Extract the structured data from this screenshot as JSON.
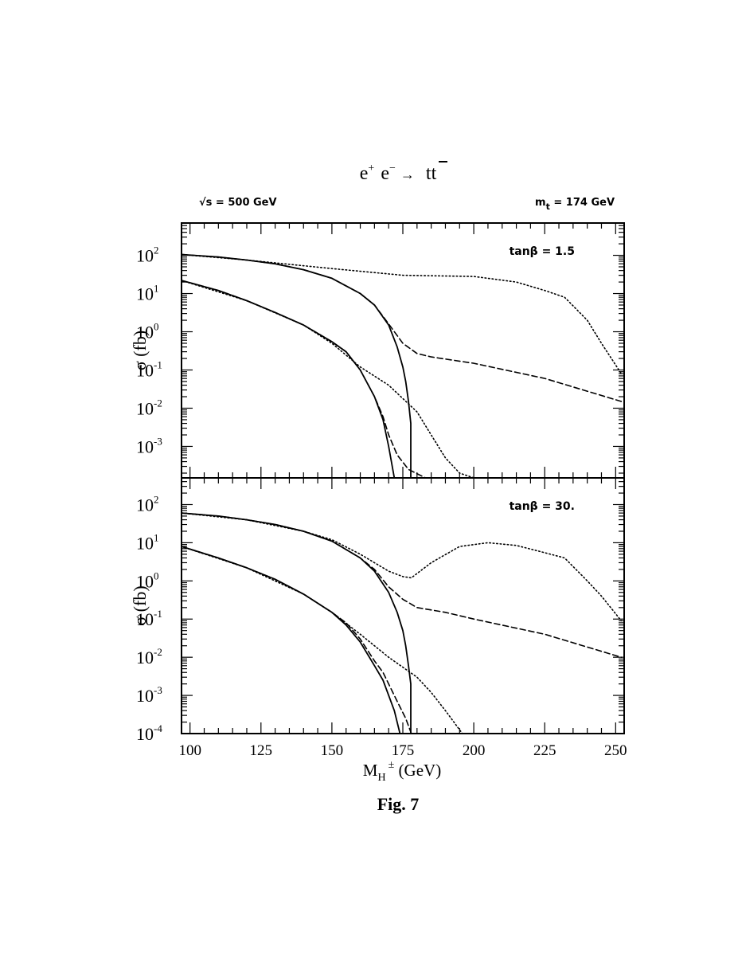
{
  "header": {
    "reaction_parts": [
      "e",
      "+",
      "e",
      "−",
      "→",
      "t",
      "t"
    ],
    "sqrt_s_label": "√s =  500 GeV",
    "mt_label_main": "m",
    "mt_label_sub": "t",
    "mt_label_value": " = 174 GeV"
  },
  "caption": "Fig. 7",
  "xaxis": {
    "label_main": "M",
    "label_sub": "H",
    "label_sup": "±",
    "label_unit": " (GeV)",
    "ticks": [
      "100",
      "125",
      "150",
      "175",
      "200",
      "225",
      "250"
    ]
  },
  "chart_data": [
    {
      "type": "line",
      "yscale": "log",
      "xlim": [
        97,
        253
      ],
      "ylim": [
        0.00015,
        700
      ],
      "ylabel": "σ (fb)",
      "annotation": "tanβ = 1.5",
      "yticks": [
        {
          "base": "10",
          "exp": "2",
          "value": 100
        },
        {
          "base": "10",
          "exp": "1",
          "value": 10
        },
        {
          "base": "10",
          "exp": "0",
          "value": 1
        },
        {
          "base": "10",
          "exp": "-1",
          "value": 0.1
        },
        {
          "base": "10",
          "exp": "-2",
          "value": 0.01
        },
        {
          "base": "10",
          "exp": "-3",
          "value": 0.001
        }
      ],
      "series": [
        {
          "style": "solid",
          "x": [
            97,
            110,
            120,
            130,
            140,
            150,
            160,
            165,
            170,
            173,
            175,
            176,
            177,
            177.8,
            177.8
          ],
          "y": [
            105,
            90,
            75,
            60,
            42,
            25,
            10,
            5,
            1.5,
            0.4,
            0.12,
            0.05,
            0.015,
            0.004,
            0.00015
          ]
        },
        {
          "style": "dashed",
          "x": [
            97,
            110,
            120,
            130,
            140,
            150,
            160,
            165,
            170,
            175,
            180,
            185,
            200,
            225,
            252
          ],
          "y": [
            105,
            90,
            75,
            60,
            42,
            25,
            10,
            5,
            1.6,
            0.5,
            0.27,
            0.22,
            0.15,
            0.06,
            0.015
          ]
        },
        {
          "style": "dotted",
          "x": [
            97,
            120,
            150,
            175,
            200,
            215,
            225,
            232,
            240,
            245,
            252
          ],
          "y": [
            105,
            75,
            45,
            30,
            28,
            20,
            12,
            8,
            2,
            0.5,
            0.08
          ]
        },
        {
          "style": "solid",
          "x": [
            97,
            110,
            120,
            130,
            140,
            150,
            155,
            160,
            165,
            168,
            170,
            172
          ],
          "y": [
            22,
            12,
            6.5,
            3.2,
            1.5,
            0.55,
            0.3,
            0.1,
            0.02,
            0.005,
            0.001,
            0.00015
          ]
        },
        {
          "style": "dashed",
          "x": [
            97,
            110,
            120,
            130,
            140,
            150,
            155,
            160,
            165,
            168,
            170,
            173,
            177,
            183
          ],
          "y": [
            22,
            12,
            6.5,
            3.2,
            1.5,
            0.55,
            0.3,
            0.1,
            0.02,
            0.006,
            0.002,
            0.0006,
            0.00025,
            0.00015
          ]
        },
        {
          "style": "dotted",
          "x": [
            97,
            120,
            140,
            150,
            160,
            170,
            180,
            185,
            190,
            195,
            200
          ],
          "y": [
            22,
            6.5,
            1.5,
            0.5,
            0.12,
            0.04,
            0.008,
            0.002,
            0.0005,
            0.0002,
            0.00015
          ]
        }
      ]
    },
    {
      "type": "line",
      "yscale": "log",
      "xlim": [
        97,
        253
      ],
      "ylim": [
        0.0001,
        500
      ],
      "ylabel": "σ (fb)",
      "annotation": "tanβ = 30.",
      "yticks": [
        {
          "base": "10",
          "exp": "2",
          "value": 100
        },
        {
          "base": "10",
          "exp": "1",
          "value": 10
        },
        {
          "base": "10",
          "exp": "0",
          "value": 1
        },
        {
          "base": "10",
          "exp": "-1",
          "value": 0.1
        },
        {
          "base": "10",
          "exp": "-2",
          "value": 0.01
        },
        {
          "base": "10",
          "exp": "-3",
          "value": 0.001
        },
        {
          "base": "10",
          "exp": "-4",
          "value": 0.0001
        }
      ],
      "series": [
        {
          "style": "solid",
          "x": [
            97,
            110,
            120,
            130,
            140,
            150,
            160,
            165,
            170,
            173,
            175,
            176,
            177,
            177.8,
            177.8
          ],
          "y": [
            60,
            50,
            40,
            30,
            20,
            11,
            4,
            1.8,
            0.5,
            0.15,
            0.05,
            0.02,
            0.006,
            0.002,
            0.0001
          ]
        },
        {
          "style": "dashed",
          "x": [
            97,
            110,
            120,
            130,
            140,
            150,
            160,
            165,
            170,
            175,
            180,
            190,
            200,
            225,
            252
          ],
          "y": [
            60,
            50,
            40,
            30,
            20,
            11,
            4,
            2,
            0.7,
            0.33,
            0.2,
            0.15,
            0.1,
            0.04,
            0.01
          ]
        },
        {
          "style": "dotted",
          "x": [
            97,
            120,
            140,
            150,
            160,
            170,
            175,
            178,
            185,
            195,
            205,
            215,
            225,
            232,
            240,
            245,
            252
          ],
          "y": [
            60,
            40,
            20,
            12,
            5,
            1.8,
            1.3,
            1.2,
            3,
            8,
            10,
            8.5,
            5.5,
            4,
            1,
            0.4,
            0.09
          ]
        },
        {
          "style": "solid",
          "x": [
            97,
            110,
            120,
            130,
            140,
            150,
            155,
            160,
            165,
            168,
            170,
            172,
            174
          ],
          "y": [
            8,
            4,
            2.2,
            1.1,
            0.45,
            0.15,
            0.07,
            0.025,
            0.006,
            0.0025,
            0.001,
            0.0004,
            0.0001
          ]
        },
        {
          "style": "dashed",
          "x": [
            97,
            110,
            120,
            130,
            140,
            150,
            155,
            160,
            165,
            168,
            170,
            173,
            176,
            178
          ],
          "y": [
            8,
            4,
            2.2,
            1.1,
            0.45,
            0.15,
            0.08,
            0.03,
            0.008,
            0.004,
            0.002,
            0.0007,
            0.00025,
            0.0001
          ]
        },
        {
          "style": "dotted",
          "x": [
            97,
            120,
            140,
            150,
            160,
            170,
            180,
            185,
            190,
            196
          ],
          "y": [
            8,
            2.2,
            0.45,
            0.15,
            0.04,
            0.01,
            0.003,
            0.0012,
            0.0004,
            0.0001
          ]
        }
      ]
    }
  ]
}
